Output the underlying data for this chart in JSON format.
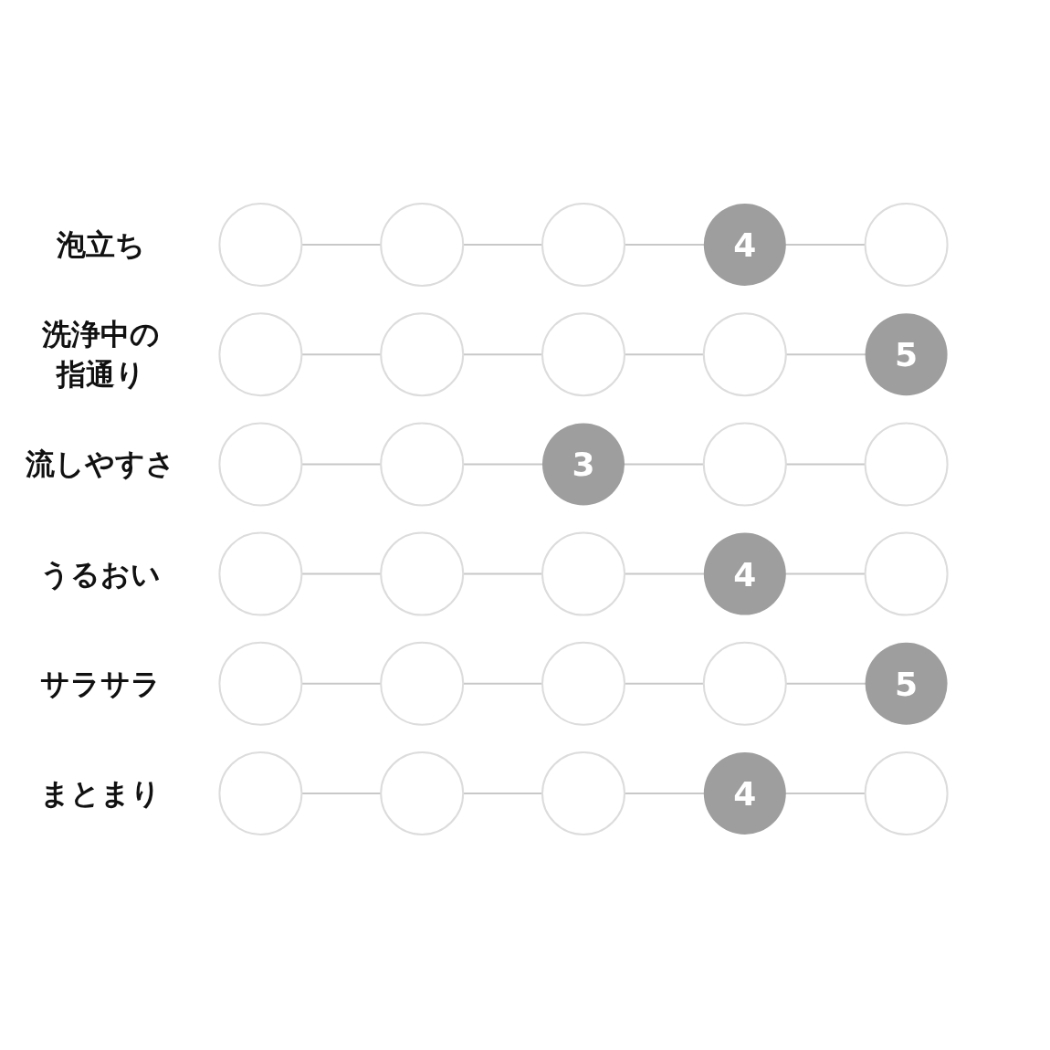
{
  "chart_data": {
    "type": "other",
    "categories": [
      "泡立ち",
      "洗浄中の指通り",
      "流しやすさ",
      "うるおい",
      "サラサラ",
      "まとまり"
    ],
    "values": [
      4,
      5,
      3,
      4,
      5,
      4
    ],
    "color": "#9e9e9e",
    "data_labels": true
  }
}
